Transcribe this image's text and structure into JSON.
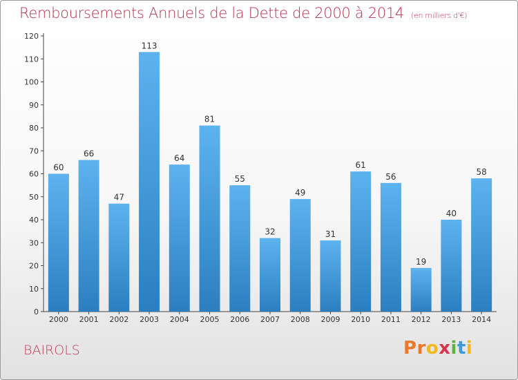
{
  "header": {
    "title": "Remboursements Annuels de la Dette de 2000 à 2014",
    "subtitle": "(en milliers d'€)"
  },
  "footer": {
    "place": "BAIROLS",
    "logo": [
      "P",
      "r",
      "o",
      "x",
      "i",
      "t",
      "i"
    ]
  },
  "colors": {
    "title": "#b5314f",
    "bar_top": "#5db3ee",
    "bar_bottom": "#2b7fc0",
    "logo": [
      "#e8792a",
      "#e8792a",
      "#f3b81d",
      "#d9334e",
      "#5fb33c",
      "#3e9ad6",
      "#f3b81d"
    ]
  },
  "chart_data": {
    "type": "bar",
    "title": "Remboursements Annuels de la Dette de 2000 à 2014",
    "subtitle": "(en milliers d'€)",
    "categories": [
      "2000",
      "2001",
      "2002",
      "2003",
      "2004",
      "2005",
      "2006",
      "2007",
      "2008",
      "2009",
      "2010",
      "2011",
      "2012",
      "2013",
      "2014"
    ],
    "values": [
      60,
      66,
      47,
      113,
      64,
      81,
      55,
      32,
      49,
      31,
      61,
      56,
      19,
      40,
      58
    ],
    "ylim": [
      0,
      120
    ],
    "yticks": [
      0,
      10,
      20,
      30,
      40,
      50,
      60,
      70,
      80,
      90,
      100,
      110,
      120
    ],
    "grid": false,
    "data_labels": true
  }
}
